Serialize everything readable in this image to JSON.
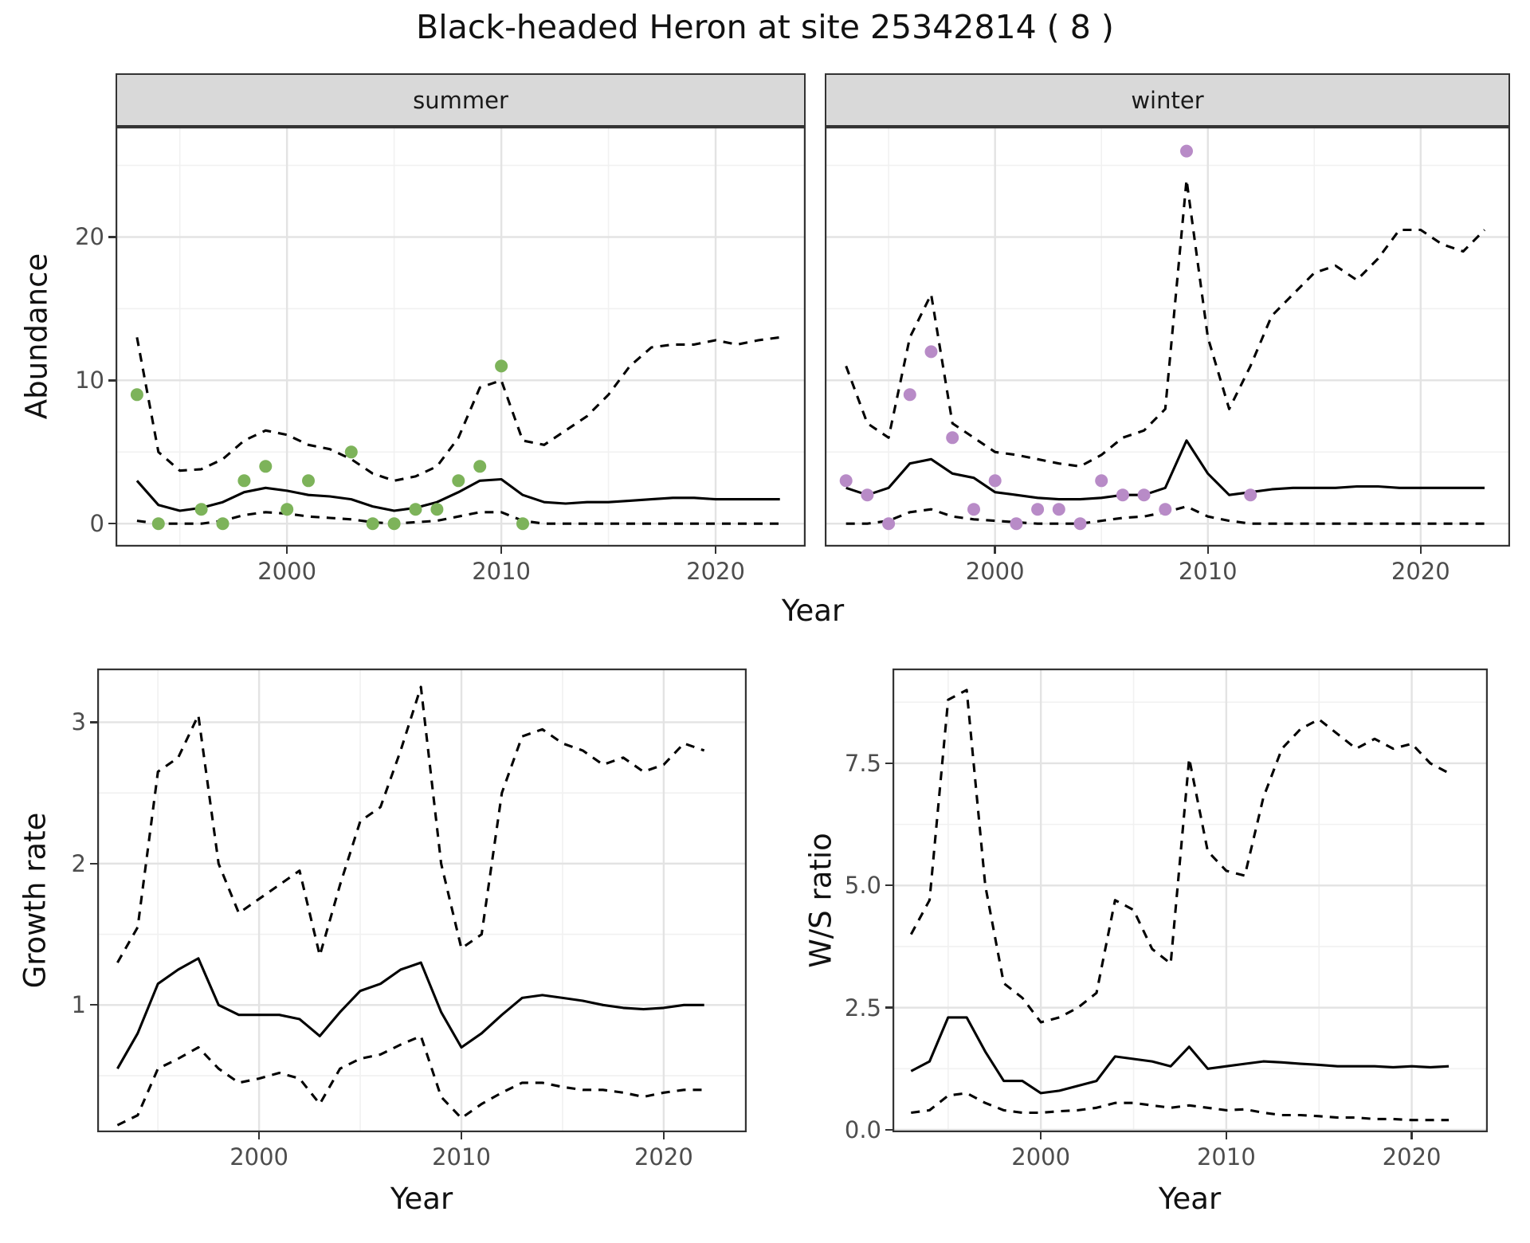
{
  "title": "Black-headed Heron at site 25342814 ( 8 )",
  "colors": {
    "summer_points": "#7db35a",
    "winter_points": "#b88bc7",
    "line": "#000000",
    "strip_bg": "#d9d9d9",
    "grid_major": "#e3e3e3",
    "grid_minor": "#f1f1f1",
    "panel_border": "#333333"
  },
  "chart_data": [
    {
      "id": "abundance",
      "type": "line",
      "description": "Observed seasonal counts (points) with modeled median (solid line) and 95% credible interval (dashed lines), faceted by season",
      "xlabel": "Year",
      "ylabel": "Abundance",
      "xlim": [
        1992,
        2024.2
      ],
      "ylim": [
        -1.6,
        27.7
      ],
      "xticks": [
        2000,
        2010,
        2020
      ],
      "xtick_labels": [
        "2000",
        "2010",
        "2020"
      ],
      "xminor": [
        1995,
        2005,
        2015
      ],
      "yticks": [
        0,
        10,
        20
      ],
      "ytick_labels": [
        "0",
        "10",
        "20"
      ],
      "yminor": [
        5,
        15,
        25
      ],
      "years": [
        1993,
        1994,
        1995,
        1996,
        1997,
        1998,
        1999,
        2000,
        2001,
        2002,
        2003,
        2004,
        2005,
        2006,
        2007,
        2008,
        2009,
        2010,
        2011,
        2012,
        2013,
        2014,
        2015,
        2016,
        2017,
        2018,
        2019,
        2020,
        2021,
        2022,
        2023
      ],
      "panels": [
        {
          "facet": "summer",
          "point_color_key": "summer_points",
          "points": [
            [
              1993,
              9
            ],
            [
              1994,
              0
            ],
            [
              1996,
              1
            ],
            [
              1997,
              0
            ],
            [
              1998,
              3
            ],
            [
              1999,
              4
            ],
            [
              2000,
              1
            ],
            [
              2001,
              3
            ],
            [
              2003,
              5
            ],
            [
              2004,
              0
            ],
            [
              2005,
              0
            ],
            [
              2006,
              1
            ],
            [
              2007,
              1
            ],
            [
              2008,
              3
            ],
            [
              2009,
              4
            ],
            [
              2010,
              11
            ],
            [
              2011,
              0
            ]
          ],
          "median": [
            3.0,
            1.3,
            0.9,
            1.1,
            1.5,
            2.2,
            2.5,
            2.3,
            2.0,
            1.9,
            1.7,
            1.2,
            0.9,
            1.1,
            1.5,
            2.2,
            3.0,
            3.1,
            2.0,
            1.5,
            1.4,
            1.5,
            1.5,
            1.6,
            1.7,
            1.8,
            1.8,
            1.7,
            1.7,
            1.7,
            1.7
          ],
          "upper": [
            13.0,
            5.0,
            3.7,
            3.8,
            4.5,
            5.8,
            6.5,
            6.2,
            5.5,
            5.2,
            4.5,
            3.5,
            3.0,
            3.3,
            4.0,
            6.0,
            9.5,
            10.0,
            5.8,
            5.5,
            6.5,
            7.5,
            9.0,
            11.0,
            12.3,
            12.5,
            12.5,
            12.8,
            12.5,
            12.8,
            13.0
          ],
          "lower": [
            0.2,
            0.0,
            0.0,
            0.0,
            0.2,
            0.6,
            0.8,
            0.7,
            0.5,
            0.4,
            0.3,
            0.1,
            0.0,
            0.1,
            0.2,
            0.5,
            0.8,
            0.8,
            0.2,
            0.0,
            0.0,
            0.0,
            0.0,
            0.0,
            0.0,
            0.0,
            0.0,
            0.0,
            0.0,
            0.0,
            0.0
          ]
        },
        {
          "facet": "winter",
          "point_color_key": "winter_points",
          "points": [
            [
              1993,
              3
            ],
            [
              1994,
              2
            ],
            [
              1995,
              0
            ],
            [
              1996,
              9
            ],
            [
              1997,
              12
            ],
            [
              1998,
              6
            ],
            [
              1999,
              1
            ],
            [
              2000,
              3
            ],
            [
              2001,
              0
            ],
            [
              2002,
              1
            ],
            [
              2003,
              1
            ],
            [
              2004,
              0
            ],
            [
              2005,
              3
            ],
            [
              2006,
              2
            ],
            [
              2007,
              2
            ],
            [
              2008,
              1
            ],
            [
              2009,
              26
            ],
            [
              2012,
              2
            ]
          ],
          "median": [
            2.5,
            2.0,
            2.5,
            4.2,
            4.5,
            3.5,
            3.2,
            2.2,
            2.0,
            1.8,
            1.7,
            1.7,
            1.8,
            2.0,
            2.0,
            2.5,
            5.8,
            3.5,
            2.0,
            2.2,
            2.4,
            2.5,
            2.5,
            2.5,
            2.6,
            2.6,
            2.5,
            2.5,
            2.5,
            2.5,
            2.5
          ],
          "upper": [
            11.0,
            7.0,
            6.0,
            13.0,
            16.0,
            7.0,
            6.0,
            5.0,
            4.8,
            4.5,
            4.2,
            4.0,
            4.8,
            6.0,
            6.5,
            8.0,
            24.0,
            13.0,
            8.0,
            11.0,
            14.5,
            16.0,
            17.5,
            18.0,
            17.0,
            18.5,
            20.5,
            20.5,
            19.5,
            19.0,
            20.5
          ],
          "lower": [
            0.0,
            0.0,
            0.2,
            0.8,
            1.0,
            0.5,
            0.3,
            0.2,
            0.1,
            0.0,
            0.0,
            0.0,
            0.2,
            0.4,
            0.5,
            0.8,
            1.2,
            0.5,
            0.2,
            0.0,
            0.0,
            0.0,
            0.0,
            0.0,
            0.0,
            0.0,
            0.0,
            0.0,
            0.0,
            0.0,
            0.0
          ]
        }
      ]
    },
    {
      "id": "growth_rate",
      "type": "line",
      "description": "Annual growth rate: median (solid) with 95% credible interval (dashed)",
      "xlabel": "Year",
      "ylabel": "Growth rate",
      "xlim": [
        1992,
        2024.1
      ],
      "ylim": [
        0.1,
        3.38
      ],
      "xticks": [
        2000,
        2010,
        2020
      ],
      "xtick_labels": [
        "2000",
        "2010",
        "2020"
      ],
      "xminor": [
        1995,
        2005,
        2015
      ],
      "yticks": [
        1,
        2,
        3
      ],
      "ytick_labels": [
        "1",
        "2",
        "3"
      ],
      "yminor": [
        0.5,
        1.5,
        2.5
      ],
      "years": [
        1993,
        1994,
        1995,
        1996,
        1997,
        1998,
        1999,
        2000,
        2001,
        2002,
        2003,
        2004,
        2005,
        2006,
        2007,
        2008,
        2009,
        2010,
        2011,
        2012,
        2013,
        2014,
        2015,
        2016,
        2017,
        2018,
        2019,
        2020,
        2021,
        2022
      ],
      "median": [
        0.55,
        0.8,
        1.15,
        1.25,
        1.33,
        1.0,
        0.93,
        0.93,
        0.93,
        0.9,
        0.78,
        0.95,
        1.1,
        1.15,
        1.25,
        1.3,
        0.95,
        0.7,
        0.8,
        0.93,
        1.05,
        1.07,
        1.05,
        1.03,
        1.0,
        0.98,
        0.97,
        0.98,
        1.0,
        1.0
      ],
      "upper": [
        1.3,
        1.55,
        2.65,
        2.75,
        3.05,
        2.0,
        1.65,
        1.75,
        1.85,
        1.95,
        1.35,
        1.85,
        2.3,
        2.4,
        2.8,
        3.25,
        2.0,
        1.4,
        1.5,
        2.5,
        2.9,
        2.95,
        2.85,
        2.8,
        2.7,
        2.75,
        2.65,
        2.7,
        2.85,
        2.8
      ],
      "lower": [
        0.15,
        0.22,
        0.55,
        0.62,
        0.7,
        0.55,
        0.45,
        0.48,
        0.52,
        0.48,
        0.3,
        0.55,
        0.62,
        0.65,
        0.72,
        0.78,
        0.35,
        0.2,
        0.3,
        0.38,
        0.45,
        0.45,
        0.42,
        0.4,
        0.4,
        0.38,
        0.35,
        0.38,
        0.4,
        0.4
      ]
    },
    {
      "id": "ws_ratio",
      "type": "line",
      "description": "Winter/Summer abundance ratio: median (solid) with 95% credible interval (dashed)",
      "xlabel": "Year",
      "ylabel": "W/S ratio",
      "xlim": [
        1992,
        2024.1
      ],
      "ylim": [
        -0.05,
        9.44
      ],
      "xticks": [
        2000,
        2010,
        2020
      ],
      "xtick_labels": [
        "2000",
        "2010",
        "2020"
      ],
      "xminor": [
        1995,
        2005,
        2015
      ],
      "yticks": [
        0,
        2.5,
        5,
        7.5
      ],
      "ytick_labels": [
        "0.0",
        "2.5",
        "5.0",
        "7.5"
      ],
      "yminor": [
        1.25,
        3.75,
        6.25,
        8.75
      ],
      "years": [
        1993,
        1994,
        1995,
        1996,
        1997,
        1998,
        1999,
        2000,
        2001,
        2002,
        2003,
        2004,
        2005,
        2006,
        2007,
        2008,
        2009,
        2010,
        2011,
        2012,
        2013,
        2014,
        2015,
        2016,
        2017,
        2018,
        2019,
        2020,
        2021,
        2022
      ],
      "median": [
        1.2,
        1.4,
        2.3,
        2.3,
        1.6,
        1.0,
        1.0,
        0.75,
        0.8,
        0.9,
        1.0,
        1.5,
        1.45,
        1.4,
        1.3,
        1.7,
        1.25,
        1.3,
        1.35,
        1.4,
        1.38,
        1.35,
        1.33,
        1.3,
        1.3,
        1.3,
        1.28,
        1.3,
        1.28,
        1.3
      ],
      "upper": [
        4.0,
        4.7,
        8.8,
        9.0,
        5.0,
        3.0,
        2.7,
        2.2,
        2.3,
        2.5,
        2.8,
        4.7,
        4.5,
        3.7,
        3.4,
        7.6,
        5.7,
        5.3,
        5.2,
        6.8,
        7.8,
        8.2,
        8.4,
        8.1,
        7.8,
        8.0,
        7.8,
        7.9,
        7.5,
        7.3
      ],
      "lower": [
        0.35,
        0.4,
        0.7,
        0.75,
        0.55,
        0.4,
        0.35,
        0.35,
        0.38,
        0.4,
        0.45,
        0.55,
        0.55,
        0.5,
        0.45,
        0.5,
        0.45,
        0.4,
        0.42,
        0.35,
        0.3,
        0.3,
        0.28,
        0.25,
        0.25,
        0.22,
        0.22,
        0.2,
        0.2,
        0.2
      ]
    }
  ]
}
